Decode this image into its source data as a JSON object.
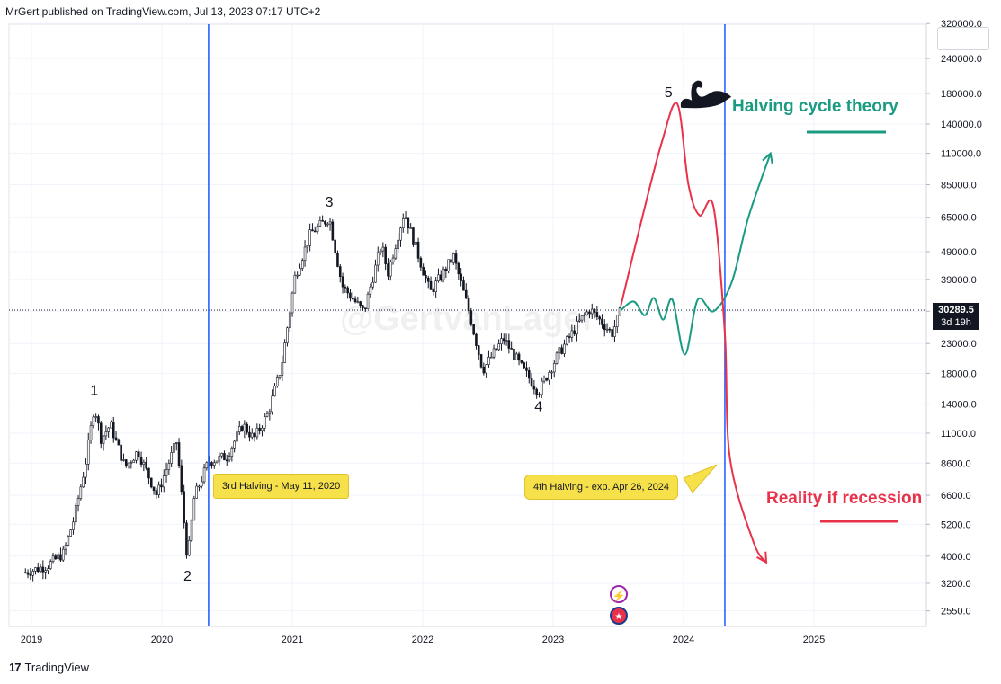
{
  "header": {
    "text": "MrGert published on TradingView.com, Jul 13, 2023 07:17 UTC+2"
  },
  "footer": {
    "brand": "TradingView",
    "mark": "17"
  },
  "watermark": "@GertvanLager",
  "price_tag": {
    "price": "30289.5",
    "countdown": "3d 19h"
  },
  "callouts": {
    "third_halving": "3rd Halving - May 11, 2020",
    "fourth_halving": "4th Halving - exp. Apr 26, 2024"
  },
  "labels": {
    "halving_theory": "Halving cycle theory",
    "reality": "Reality if recession"
  },
  "wave_labels": [
    "1",
    "2",
    "3",
    "4",
    "5"
  ],
  "colors": {
    "candles": "#131722",
    "halving_line": "#2962ff",
    "theory_path": "#1a9b82",
    "reality_path": "#e8324a",
    "callout_bg": "#f7e14a"
  },
  "icons": {
    "event": "lightning-icon",
    "flag": "us-flag-icon",
    "swan": "black-swan-icon"
  },
  "chart_data": {
    "type": "line",
    "title": "",
    "xlabel": "",
    "ylabel": "",
    "y_scale": "log",
    "ylim": [
      2300,
      320000
    ],
    "x_ticks": [
      "2019",
      "2020",
      "2021",
      "2022",
      "2023",
      "2024",
      "2025"
    ],
    "y_ticks": [
      "320000.0",
      "240000.0",
      "180000.0",
      "140000.0",
      "110000.0",
      "85000.0",
      "65000.0",
      "49000.0",
      "39000.0",
      "30000.0",
      "23000.0",
      "18000.0",
      "14000.0",
      "11000.0",
      "8600.0",
      "6600.0",
      "5200.0",
      "4000.0",
      "3200.0",
      "2550.0"
    ],
    "last_price": 30289.5,
    "halving_dates": [
      "2020-05-11",
      "2024-04-26"
    ],
    "wave_points": [
      {
        "label": "1",
        "date": "2019-06-26",
        "price": 13800
      },
      {
        "label": "2",
        "date": "2020-03-13",
        "price": 3850
      },
      {
        "label": "3",
        "date": "2021-04-14",
        "price": 64800
      },
      {
        "label": "4",
        "date": "2022-11-21",
        "price": 15500
      },
      {
        "label": "5",
        "date": "2023-12-15",
        "price": 165000
      }
    ],
    "series": [
      {
        "values": [
          [
            "2018-12-15",
            3500
          ],
          [
            "2019-02-15",
            3700
          ],
          [
            "2019-04-01",
            4100
          ],
          [
            "2019-05-01",
            5500
          ],
          [
            "2019-06-01",
            8500
          ],
          [
            "2019-06-26",
            13800
          ],
          [
            "2019-07-15",
            10500
          ],
          [
            "2019-08-10",
            11800
          ],
          [
            "2019-09-20",
            8300
          ],
          [
            "2019-10-26",
            9500
          ],
          [
            "2019-12-18",
            6600
          ],
          [
            "2020-02-12",
            10300
          ],
          [
            "2020-03-13",
            3850
          ],
          [
            "2020-04-01",
            6500
          ],
          [
            "2020-05-11",
            8700
          ],
          [
            "2020-07-01",
            9100
          ],
          [
            "2020-08-15",
            11800
          ],
          [
            "2020-09-15",
            10500
          ],
          [
            "2020-10-25",
            13000
          ],
          [
            "2020-12-01",
            19000
          ],
          [
            "2021-01-08",
            40000
          ],
          [
            "2021-02-21",
            57000
          ],
          [
            "2021-04-14",
            64800
          ],
          [
            "2021-05-20",
            37000
          ],
          [
            "2021-07-20",
            29800
          ],
          [
            "2021-09-07",
            52000
          ],
          [
            "2021-09-25",
            41000
          ],
          [
            "2021-11-10",
            68000
          ],
          [
            "2022-01-22",
            35000
          ],
          [
            "2022-03-28",
            47000
          ],
          [
            "2022-05-10",
            30000
          ],
          [
            "2022-06-18",
            18500
          ],
          [
            "2022-08-15",
            24000
          ],
          [
            "2022-10-01",
            19200
          ],
          [
            "2022-11-21",
            15500
          ],
          [
            "2023-01-15",
            21000
          ],
          [
            "2023-03-20",
            28000
          ],
          [
            "2023-04-14",
            30500
          ],
          [
            "2023-06-15",
            25000
          ],
          [
            "2023-07-10",
            30289.5
          ]
        ]
      },
      {
        "name": "",
        "values": [
          [
            "2023-07-10",
            30300
          ],
          [
            "2023-08-15",
            32500
          ],
          [
            "2023-09-15",
            29000
          ],
          [
            "2023-10-10",
            33500
          ],
          [
            "2023-11-05",
            28000
          ],
          [
            "2023-12-01",
            33000
          ],
          [
            "2024-01-05",
            21000
          ],
          [
            "2024-02-10",
            33000
          ],
          [
            "2024-03-25",
            30000
          ],
          [
            "2024-05-15",
            38000
          ],
          [
            "2024-07-01",
            65000
          ],
          [
            "2024-09-01",
            110000
          ]
        ]
      },
      {
        "name": "",
        "values": [
          [
            "2023-07-10",
            31500
          ],
          [
            "2023-09-01",
            60000
          ],
          [
            "2023-11-01",
            120000
          ],
          [
            "2023-12-15",
            165000
          ],
          [
            "2024-01-15",
            85000
          ],
          [
            "2024-02-15",
            66000
          ],
          [
            "2024-03-25",
            71000
          ],
          [
            "2024-04-26",
            25000
          ],
          [
            "2024-05-10",
            9000
          ],
          [
            "2024-07-15",
            4500
          ],
          [
            "2024-08-20",
            3800
          ]
        ]
      }
    ]
  }
}
